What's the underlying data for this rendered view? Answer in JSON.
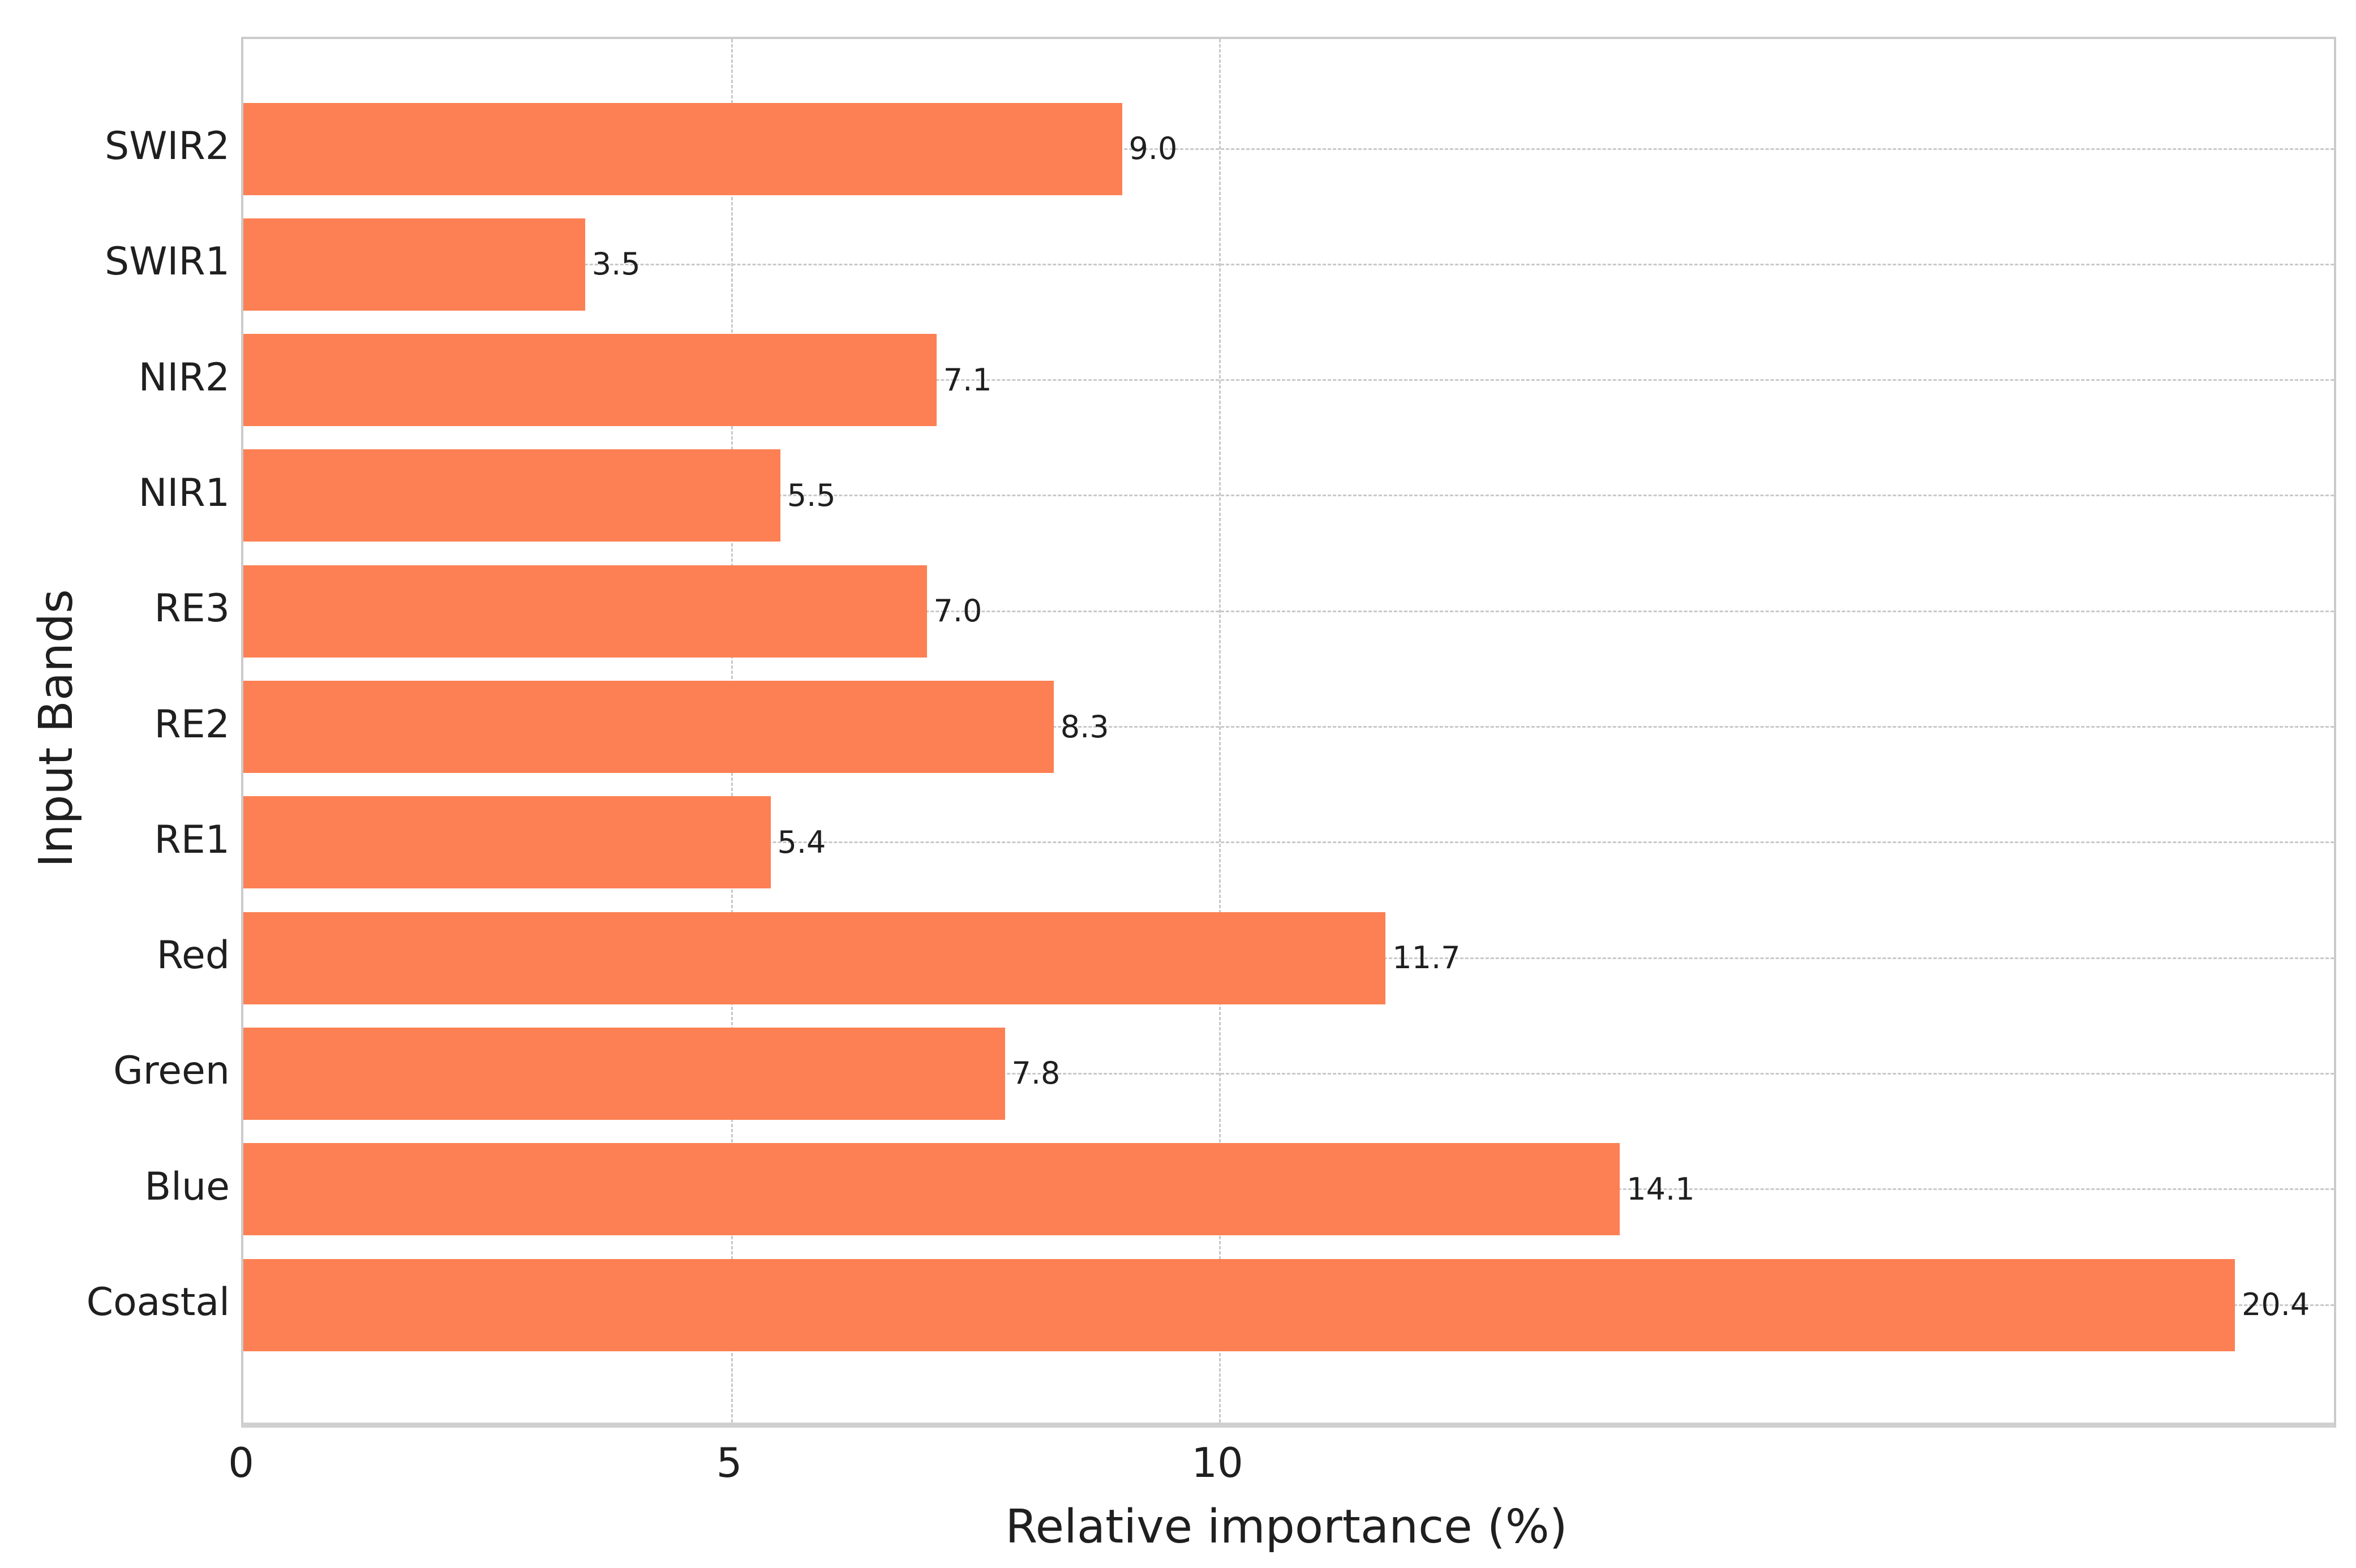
{
  "chart_data": {
    "type": "bar",
    "orientation": "horizontal",
    "title": "",
    "xlabel": "Relative importance (%)",
    "ylabel": "Input Bands",
    "categories": [
      "SWIR2",
      "SWIR1",
      "NIR2",
      "NIR1",
      "RE3",
      "RE2",
      "RE1",
      "Red",
      "Green",
      "Blue",
      "Coastal"
    ],
    "values": [
      9.0,
      3.5,
      7.1,
      5.5,
      7.0,
      8.3,
      5.4,
      11.7,
      7.8,
      14.1,
      20.4
    ],
    "value_labels": [
      "9.0",
      "3.5",
      "7.1",
      "5.5",
      "7.0",
      "8.3",
      "5.4",
      "11.7",
      "7.8",
      "14.1",
      "20.4"
    ],
    "x_ticks": [
      0,
      5,
      10
    ],
    "x_tick_labels": [
      "0",
      "5",
      "10"
    ],
    "xlim": [
      0,
      21.4
    ],
    "grid": "dashed gridlines at x ticks and at each category row center",
    "legend": "none",
    "colors": {
      "bar": "#FC8054",
      "grid": "#c9c9c9",
      "spine": "#cbcbcb",
      "text": "#1f1f1f",
      "background": "#ffffff"
    }
  }
}
